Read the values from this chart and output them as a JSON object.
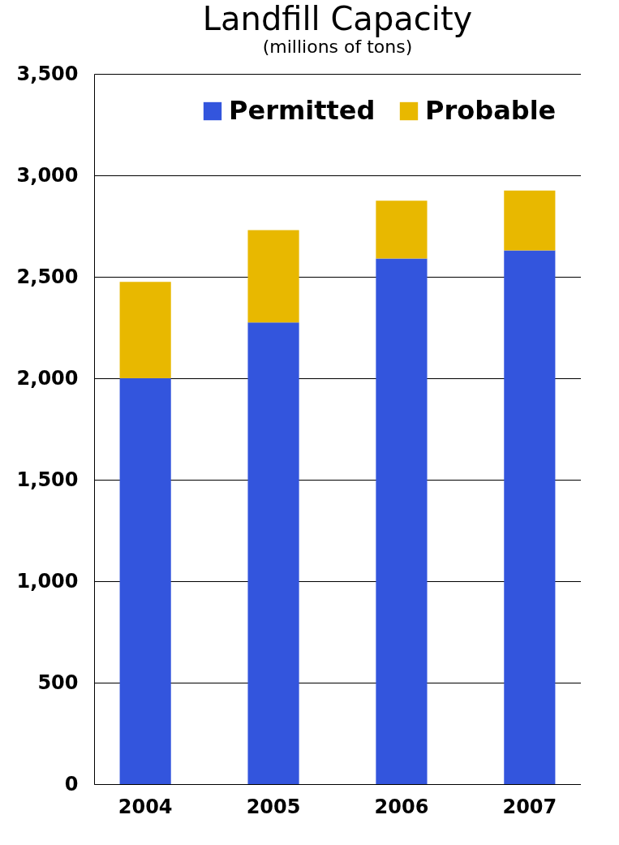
{
  "chart_data": {
    "type": "bar",
    "title": "Landfill Capacity",
    "subtitle": "(millions of tons)",
    "categories": [
      "2004",
      "2005",
      "2006",
      "2007"
    ],
    "stacked": true,
    "series": [
      {
        "name": "Permitted",
        "color": "#3355dd",
        "values": [
          2000,
          2275,
          2590,
          2630
        ]
      },
      {
        "name": "Probable",
        "color": "#e8b800",
        "values": [
          475,
          455,
          285,
          295
        ]
      }
    ],
    "ylim": [
      0,
      3500
    ],
    "yticks": [
      0,
      500,
      {
        "value": 1000,
        "label": "1,000"
      },
      {
        "value": 1500,
        "label": "1,500"
      },
      {
        "value": 2000,
        "label": "2,000"
      },
      {
        "value": 2500,
        "label": "2,500"
      },
      {
        "value": 3000,
        "label": "3,000"
      },
      {
        "value": 3500,
        "label": "3,500"
      }
    ],
    "grid": "y",
    "legend": "top right"
  }
}
